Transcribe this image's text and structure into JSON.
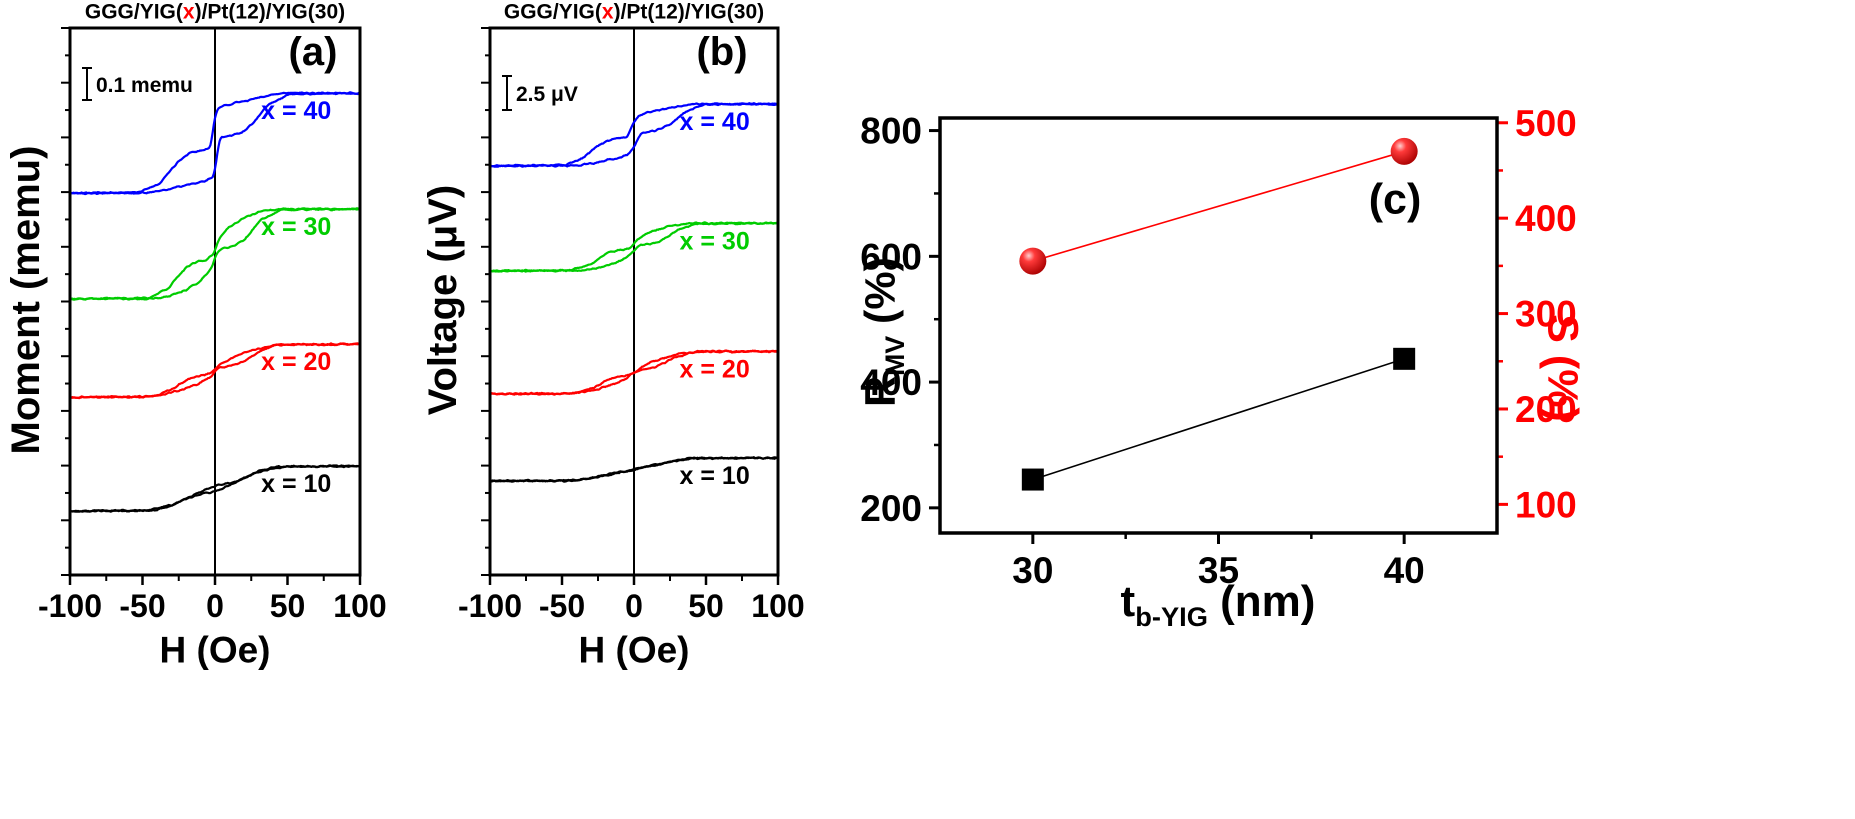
{
  "accent_colors": {
    "red": "#ff0000",
    "blue": "#0000ff",
    "green": "#00cc00",
    "black": "#000000"
  },
  "panels": {
    "a": {
      "title": {
        "pre": "GGG/YIG(",
        "x": "x",
        "post": ")/Pt(12)/YIG(30)"
      },
      "label": "(a)",
      "xlabel": "H (Oe)",
      "ylabel": "Moment (memu)",
      "scale_bar": "0.1 memu"
    },
    "b": {
      "title": {
        "pre": "GGG/YIG(",
        "x": "x",
        "post": ")/Pt(12)/YIG(30)"
      },
      "label": "(b)",
      "xlabel": "H (Oe)",
      "ylabel": "Voltage (μV)",
      "scale_bar": "2.5 μV"
    },
    "c": {
      "label": "(c)",
      "xlabel": {
        "base": "t",
        "sub": "b-YIG",
        "rest": " (nm)"
      },
      "ylabel_left": {
        "base": "R",
        "sub": "MV",
        "rest": " (%)"
      },
      "ylabel_right": "S (%)"
    }
  },
  "chart_data": [
    {
      "id": "a",
      "type": "line",
      "title": "GGG/YIG(x)/Pt(12)/YIG(30)",
      "xlabel": "H (Oe)",
      "ylabel": "Moment (memu)",
      "xlim": [
        -100,
        100
      ],
      "x_ticks": [
        -100,
        -50,
        0,
        50,
        100
      ],
      "x_minor_ticks": [
        -75,
        -25,
        25,
        75
      ],
      "scale_bar": "0.1 memu",
      "note": "Four vertically offset magnetic hysteresis loops, y axis unnumbered; loop levels given as fraction of plot height (0 = top). Ascending branch control points are [H(Oe), normalized moment 0..1]; descending branch is the point-symmetric mirror.",
      "series": [
        {
          "name": "x = 40",
          "color": "#0000ff",
          "y_top_frac": 0.119,
          "y_base_frac": 0.302,
          "ascending_branch": [
            [
              -100,
              0
            ],
            [
              -52,
              0.01
            ],
            [
              -38,
              0.1
            ],
            [
              -25,
              0.32
            ],
            [
              -18,
              0.4
            ],
            [
              -8,
              0.43
            ],
            [
              -3,
              0.45
            ],
            [
              0,
              0.78
            ],
            [
              2,
              0.85
            ],
            [
              8,
              0.88
            ],
            [
              20,
              0.92
            ],
            [
              35,
              0.97
            ],
            [
              48,
              1
            ],
            [
              100,
              1
            ]
          ]
        },
        {
          "name": "x = 30",
          "color": "#00cc00",
          "y_top_frac": 0.331,
          "y_base_frac": 0.495,
          "ascending_branch": [
            [
              -100,
              0
            ],
            [
              -45,
              0.01
            ],
            [
              -32,
              0.12
            ],
            [
              -20,
              0.35
            ],
            [
              -12,
              0.42
            ],
            [
              -5,
              0.44
            ],
            [
              -1,
              0.5
            ],
            [
              3,
              0.68
            ],
            [
              10,
              0.8
            ],
            [
              20,
              0.9
            ],
            [
              33,
              0.98
            ],
            [
              45,
              1
            ],
            [
              100,
              1
            ]
          ]
        },
        {
          "name": "x = 20",
          "color": "#ff0000",
          "y_top_frac": 0.578,
          "y_base_frac": 0.675,
          "ascending_branch": [
            [
              -100,
              0
            ],
            [
              -42,
              0.01
            ],
            [
              -30,
              0.15
            ],
            [
              -18,
              0.35
            ],
            [
              -8,
              0.42
            ],
            [
              -2,
              0.46
            ],
            [
              3,
              0.62
            ],
            [
              12,
              0.75
            ],
            [
              25,
              0.88
            ],
            [
              40,
              0.97
            ],
            [
              55,
              1
            ],
            [
              100,
              1
            ]
          ]
        },
        {
          "name": "x = 10",
          "color": "#000000",
          "y_top_frac": 0.801,
          "y_base_frac": 0.883,
          "ascending_branch": [
            [
              -100,
              0
            ],
            [
              -42,
              0.01
            ],
            [
              -30,
              0.12
            ],
            [
              -18,
              0.3
            ],
            [
              -10,
              0.38
            ],
            [
              -2,
              0.42
            ],
            [
              5,
              0.5
            ],
            [
              15,
              0.65
            ],
            [
              28,
              0.85
            ],
            [
              40,
              0.95
            ],
            [
              55,
              1
            ],
            [
              100,
              1
            ]
          ]
        }
      ]
    },
    {
      "id": "b",
      "type": "line",
      "title": "GGG/YIG(x)/Pt(12)/YIG(30)",
      "xlabel": "H (Oe)",
      "ylabel": "Voltage (μV)",
      "xlim": [
        -100,
        100
      ],
      "x_ticks": [
        -100,
        -50,
        0,
        50,
        100
      ],
      "x_minor_ticks": [
        -75,
        -25,
        25,
        75
      ],
      "scale_bar": "2.5 μV",
      "note": "Four vertically offset voltage hysteresis loops, y axis unnumbered.",
      "series": [
        {
          "name": "x = 40",
          "color": "#0000ff",
          "y_top_frac": 0.139,
          "y_base_frac": 0.252,
          "ascending_branch": [
            [
              -100,
              0
            ],
            [
              -48,
              0.01
            ],
            [
              -36,
              0.12
            ],
            [
              -24,
              0.35
            ],
            [
              -15,
              0.43
            ],
            [
              -5,
              0.46
            ],
            [
              0,
              0.7
            ],
            [
              4,
              0.82
            ],
            [
              12,
              0.88
            ],
            [
              25,
              0.94
            ],
            [
              40,
              1
            ],
            [
              100,
              1
            ]
          ]
        },
        {
          "name": "x = 30",
          "color": "#00cc00",
          "y_top_frac": 0.357,
          "y_base_frac": 0.444,
          "ascending_branch": [
            [
              -100,
              0
            ],
            [
              -44,
              0.01
            ],
            [
              -30,
              0.14
            ],
            [
              -18,
              0.38
            ],
            [
              -10,
              0.44
            ],
            [
              -3,
              0.47
            ],
            [
              2,
              0.65
            ],
            [
              10,
              0.8
            ],
            [
              22,
              0.92
            ],
            [
              38,
              1
            ],
            [
              100,
              1
            ]
          ]
        },
        {
          "name": "x = 20",
          "color": "#ff0000",
          "y_top_frac": 0.591,
          "y_base_frac": 0.669,
          "ascending_branch": [
            [
              -100,
              0
            ],
            [
              -42,
              0.01
            ],
            [
              -28,
              0.15
            ],
            [
              -16,
              0.36
            ],
            [
              -6,
              0.43
            ],
            [
              0,
              0.5
            ],
            [
              6,
              0.65
            ],
            [
              18,
              0.82
            ],
            [
              32,
              0.94
            ],
            [
              50,
              1
            ],
            [
              100,
              1
            ]
          ]
        },
        {
          "name": "x = 10",
          "color": "#000000",
          "y_top_frac": 0.786,
          "y_base_frac": 0.828,
          "ascending_branch": [
            [
              -100,
              0
            ],
            [
              -40,
              0.01
            ],
            [
              -28,
              0.14
            ],
            [
              -15,
              0.33
            ],
            [
              -5,
              0.42
            ],
            [
              3,
              0.52
            ],
            [
              14,
              0.7
            ],
            [
              28,
              0.88
            ],
            [
              42,
              0.98
            ],
            [
              60,
              1
            ],
            [
              100,
              1
            ]
          ]
        }
      ]
    },
    {
      "id": "c",
      "type": "scatter",
      "panel_label": "(c)",
      "xlabel": "t_b-YIG (nm)",
      "x_values": [
        30,
        40
      ],
      "xlim": [
        27.5,
        42.5
      ],
      "x_ticks": [
        30,
        35,
        40
      ],
      "x_minor_ticks": [
        32.5,
        37.5
      ],
      "left_axis": {
        "label": "R_MV (%)",
        "color": "#000000",
        "lim": [
          160,
          820
        ],
        "ticks": [
          200,
          400,
          600,
          800
        ],
        "minor_ticks": [
          300,
          500,
          700
        ]
      },
      "right_axis": {
        "label": "S (%)",
        "color": "#ff0000",
        "lim": [
          70,
          505
        ],
        "ticks": [
          100,
          200,
          300,
          400,
          500
        ],
        "minor_ticks": [
          150,
          250,
          350,
          450
        ]
      },
      "series": [
        {
          "name": "R_MV",
          "axis": "left",
          "marker": "square",
          "color": "#000000",
          "values": [
            245,
            437
          ]
        },
        {
          "name": "S",
          "axis": "right",
          "marker": "sphere",
          "color": "#ff0000",
          "values": [
            355,
            470
          ]
        }
      ]
    }
  ]
}
